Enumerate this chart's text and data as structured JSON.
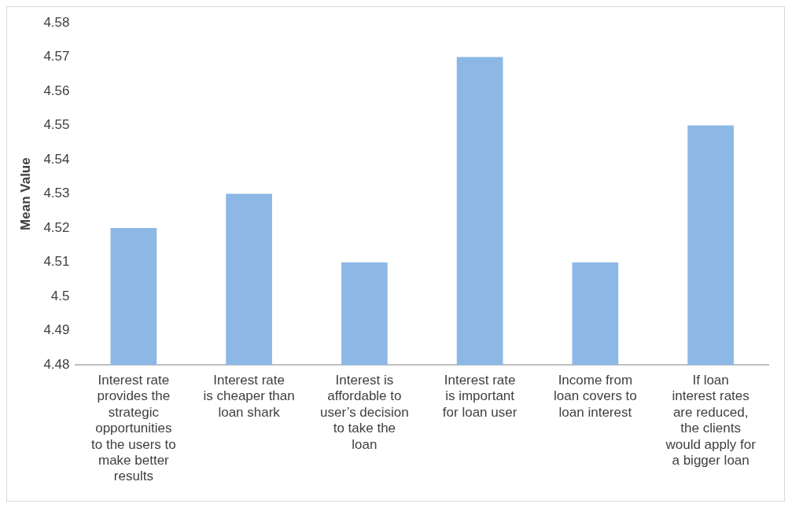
{
  "chart_data": {
    "type": "bar",
    "ylabel": "Mean Value",
    "categories": [
      "Interest rate provides the strategic opportunities to the users to make better results",
      "Interest rate is cheaper than loan shark",
      "Interest is affordable to user’s decision to take the loan",
      "Interest rate is important for loan user",
      "Income from loan covers to loan interest",
      "If loan interest rates are reduced, the clients would apply for a bigger loan"
    ],
    "values": [
      4.52,
      4.53,
      4.51,
      4.57,
      4.51,
      4.55
    ],
    "color": "#8db8e6",
    "ylim": [
      4.48,
      4.58
    ],
    "yticks": [
      4.48,
      4.49,
      4.5,
      4.51,
      4.52,
      4.53,
      4.54,
      4.55,
      4.56,
      4.57,
      4.58
    ],
    "grid": false,
    "legend": false
  }
}
